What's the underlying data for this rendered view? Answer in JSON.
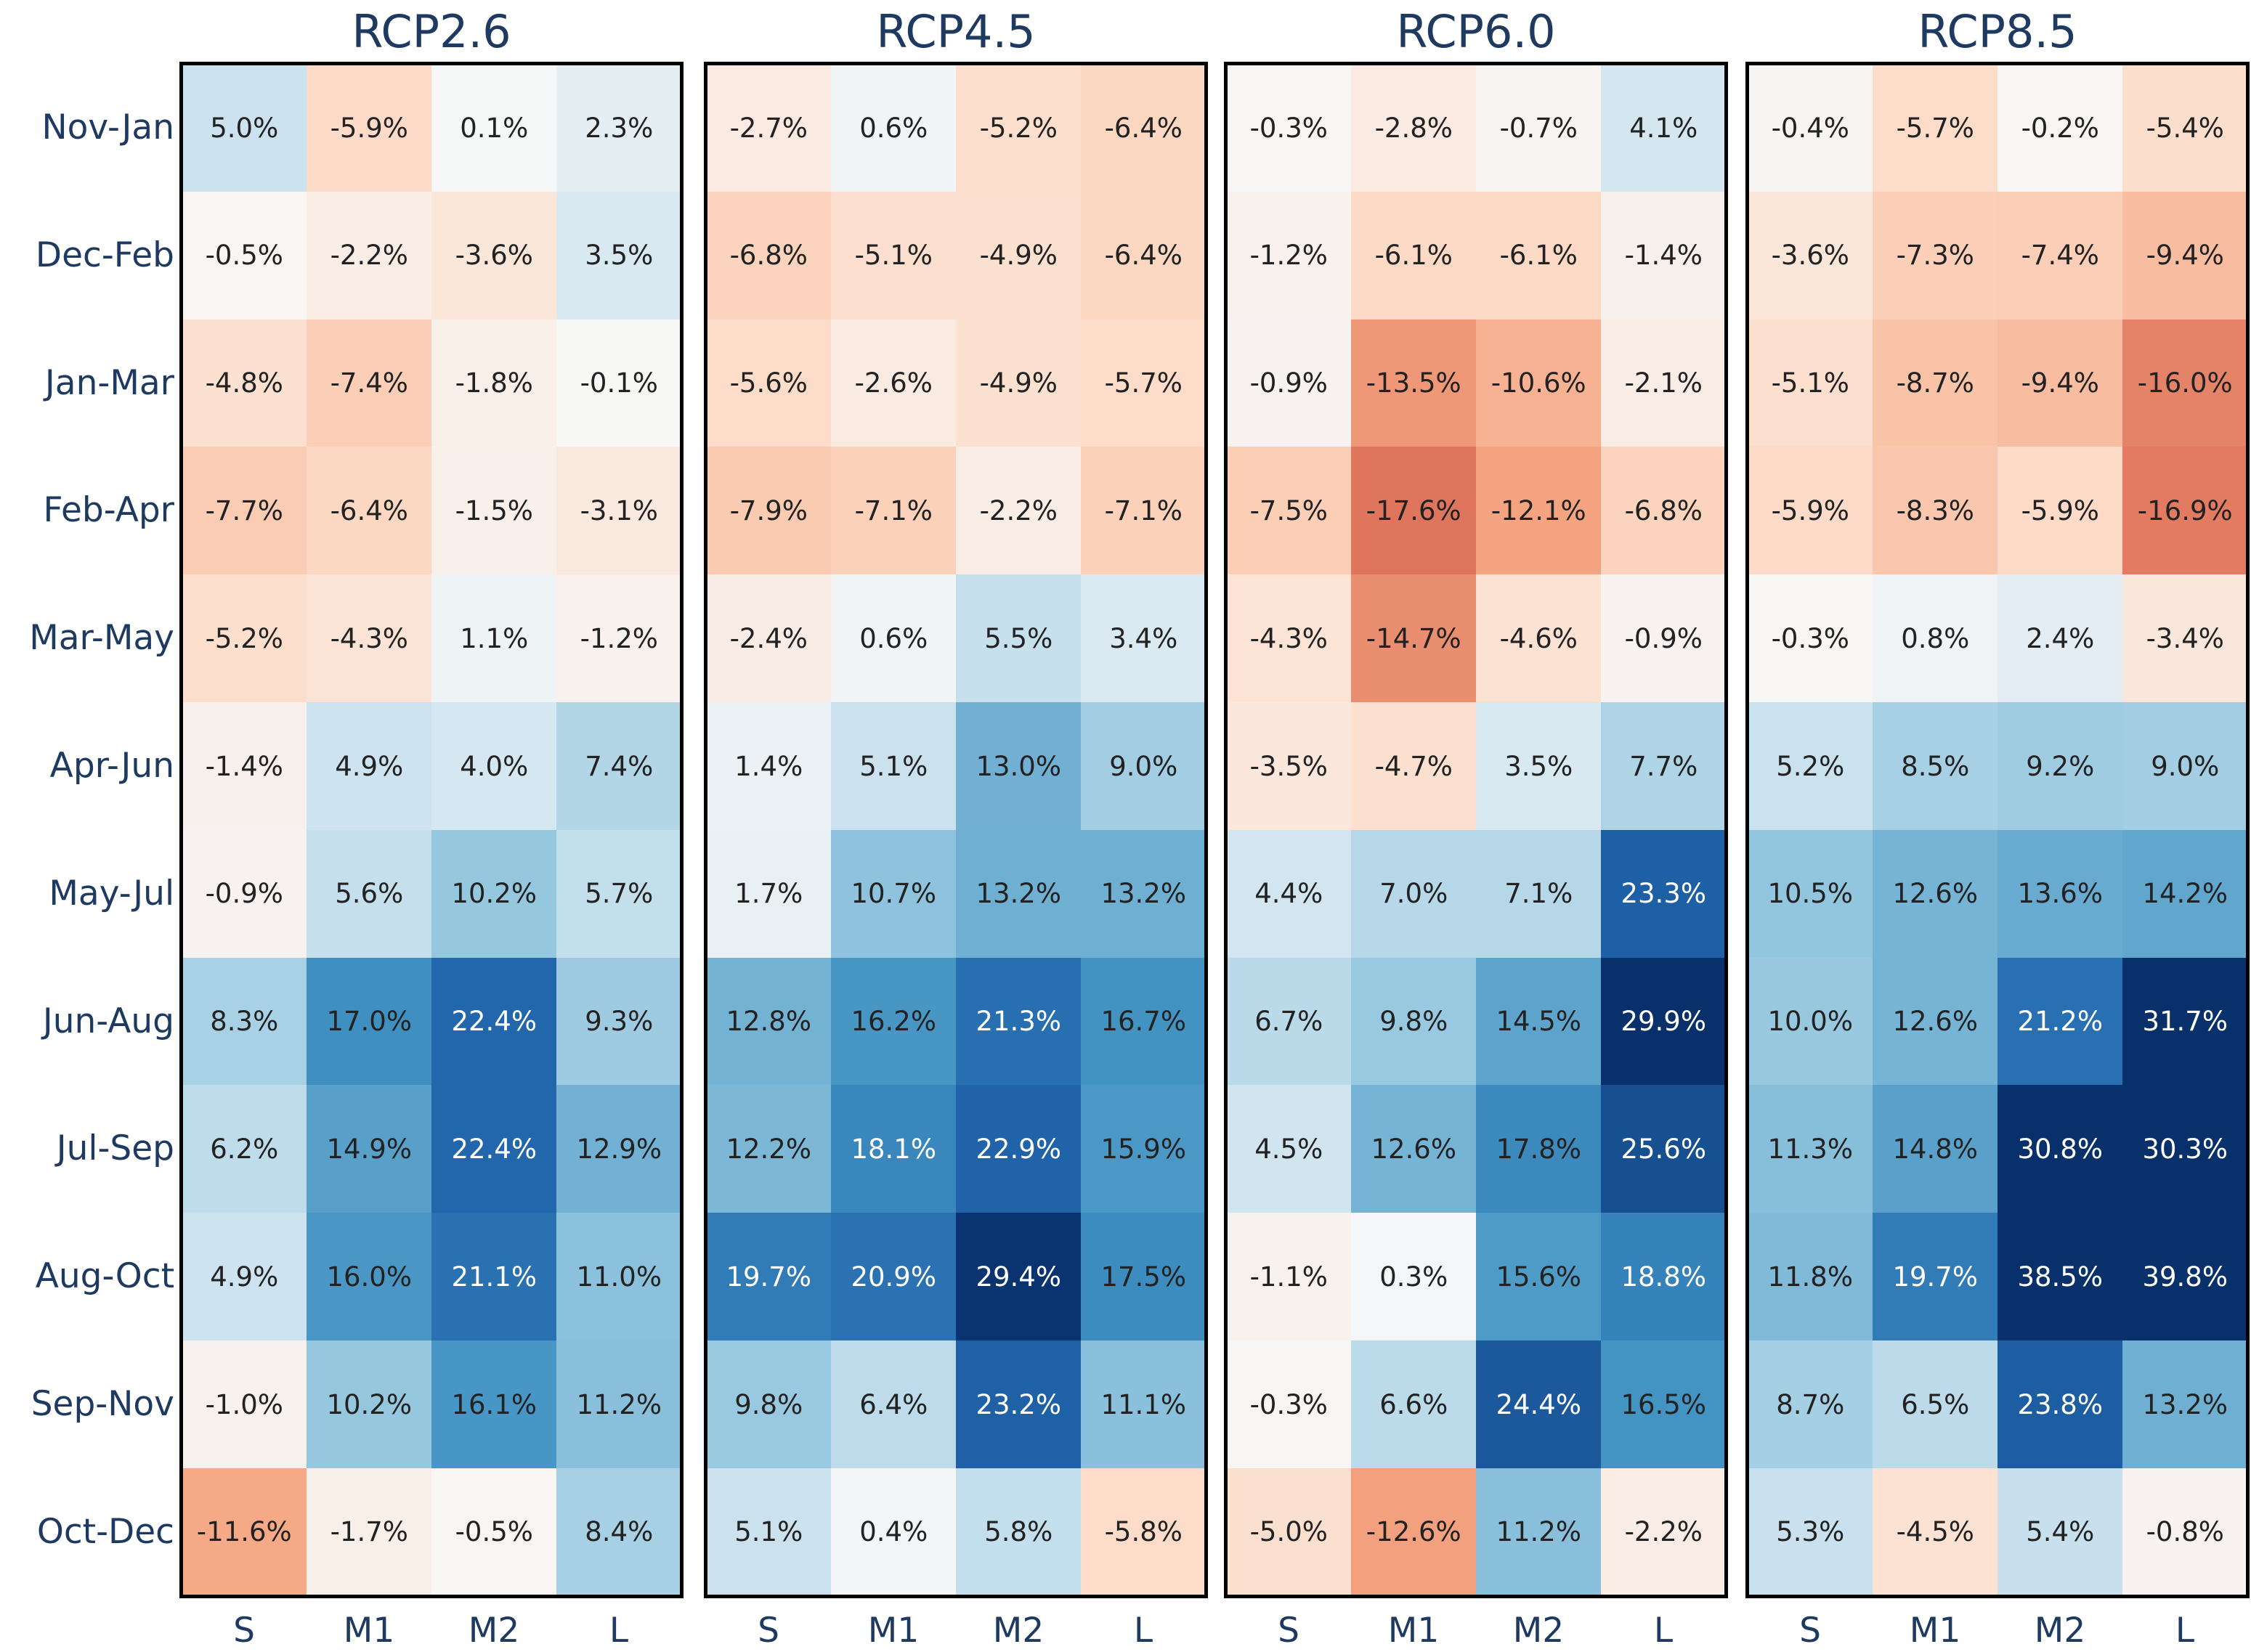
{
  "chart_data": {
    "type": "heatmap",
    "row_labels": [
      "Nov-Jan",
      "Dec-Feb",
      "Jan-Mar",
      "Feb-Apr",
      "Mar-May",
      "Apr-Jun",
      "May-Jul",
      "Jun-Aug",
      "Jul-Sep",
      "Aug-Oct",
      "Sep-Nov",
      "Oct-Dec"
    ],
    "col_labels": [
      "S",
      "M1",
      "M2",
      "L"
    ],
    "panels": [
      {
        "title": "RCP2.6",
        "values": [
          [
            5.0,
            -5.9,
            0.1,
            2.3
          ],
          [
            -0.5,
            -2.2,
            -3.6,
            3.5
          ],
          [
            -4.8,
            -7.4,
            -1.8,
            -0.1
          ],
          [
            -7.7,
            -6.4,
            -1.5,
            -3.1
          ],
          [
            -5.2,
            -4.3,
            1.1,
            -1.2
          ],
          [
            -1.4,
            4.9,
            4.0,
            7.4
          ],
          [
            -0.9,
            5.6,
            10.2,
            5.7
          ],
          [
            8.3,
            17.0,
            22.4,
            9.3
          ],
          [
            6.2,
            14.9,
            22.4,
            12.9
          ],
          [
            4.9,
            16.0,
            21.1,
            11.0
          ],
          [
            -1.0,
            10.2,
            16.1,
            11.2
          ],
          [
            -11.6,
            -1.7,
            -0.5,
            8.4
          ]
        ],
        "labels": [
          [
            "5.0%",
            "-5.9%",
            "0.1%",
            "2.3%"
          ],
          [
            "-0.5%",
            "-2.2%",
            "-3.6%",
            "3.5%"
          ],
          [
            "-4.8%",
            "-7.4%",
            "-1.8%",
            "-0.1%"
          ],
          [
            "-7.7%",
            "-6.4%",
            "-1.5%",
            "-3.1%"
          ],
          [
            "-5.2%",
            "-4.3%",
            "1.1%",
            "-1.2%"
          ],
          [
            "-1.4%",
            "4.9%",
            "4.0%",
            "7.4%"
          ],
          [
            "-0.9%",
            "5.6%",
            "10.2%",
            "5.7%"
          ],
          [
            "8.3%",
            "17.0%",
            "22.4%",
            "9.3%"
          ],
          [
            "6.2%",
            "14.9%",
            "22.4%",
            "12.9%"
          ],
          [
            "4.9%",
            "16.0%",
            "21.1%",
            "11.0%"
          ],
          [
            "-1.0%",
            "10.2%",
            "16.1%",
            "11.2%"
          ],
          [
            "-11.6%",
            "-1.7%",
            "-0.5%",
            "8.4%"
          ]
        ]
      },
      {
        "title": "RCP4.5",
        "values": [
          [
            -2.7,
            0.6,
            -5.2,
            -6.4
          ],
          [
            -6.8,
            -5.1,
            -4.9,
            -6.4
          ],
          [
            -5.6,
            -2.6,
            -4.9,
            -5.7
          ],
          [
            -7.9,
            -7.1,
            -2.2,
            -7.1
          ],
          [
            -2.4,
            0.6,
            5.5,
            3.4
          ],
          [
            1.4,
            5.1,
            13.0,
            9.0
          ],
          [
            1.7,
            10.7,
            13.2,
            13.2
          ],
          [
            12.8,
            16.2,
            21.3,
            16.7
          ],
          [
            12.2,
            18.1,
            22.9,
            15.9
          ],
          [
            19.7,
            20.9,
            29.4,
            17.5
          ],
          [
            9.8,
            6.4,
            23.2,
            11.1
          ],
          [
            5.1,
            0.4,
            5.8,
            -5.8
          ]
        ],
        "labels": [
          [
            "-2.7%",
            "0.6%",
            "-5.2%",
            "-6.4%"
          ],
          [
            "-6.8%",
            "-5.1%",
            "-4.9%",
            "-6.4%"
          ],
          [
            "-5.6%",
            "-2.6%",
            "-4.9%",
            "-5.7%"
          ],
          [
            "-7.9%",
            "-7.1%",
            "-2.2%",
            "-7.1%"
          ],
          [
            "-2.4%",
            "0.6%",
            "5.5%",
            "3.4%"
          ],
          [
            "1.4%",
            "5.1%",
            "13.0%",
            "9.0%"
          ],
          [
            "1.7%",
            "10.7%",
            "13.2%",
            "13.2%"
          ],
          [
            "12.8%",
            "16.2%",
            "21.3%",
            "16.7%"
          ],
          [
            "12.2%",
            "18.1%",
            "22.9%",
            "15.9%"
          ],
          [
            "19.7%",
            "20.9%",
            "29.4%",
            "17.5%"
          ],
          [
            "9.8%",
            "6.4%",
            "23.2%",
            "11.1%"
          ],
          [
            "5.1%",
            "0.4%",
            "5.8%",
            "-5.8%"
          ]
        ]
      },
      {
        "title": "RCP6.0",
        "values": [
          [
            -0.3,
            -2.8,
            -0.7,
            4.1
          ],
          [
            -1.2,
            -6.1,
            -6.1,
            -1.4
          ],
          [
            -0.9,
            -13.5,
            -10.6,
            -2.1
          ],
          [
            -7.5,
            -17.6,
            -12.1,
            -6.8
          ],
          [
            -4.3,
            -14.7,
            -4.6,
            -0.9
          ],
          [
            -3.5,
            -4.7,
            3.5,
            7.7
          ],
          [
            4.4,
            7.0,
            7.1,
            23.3
          ],
          [
            6.7,
            9.8,
            14.5,
            29.9
          ],
          [
            4.5,
            12.6,
            17.8,
            25.6
          ],
          [
            -1.1,
            0.3,
            15.6,
            18.8
          ],
          [
            -0.3,
            6.6,
            24.4,
            16.5
          ],
          [
            -5.0,
            -12.6,
            11.2,
            -2.2
          ]
        ],
        "labels": [
          [
            "-0.3%",
            "-2.8%",
            "-0.7%",
            "4.1%"
          ],
          [
            "-1.2%",
            "-6.1%",
            "-6.1%",
            "-1.4%"
          ],
          [
            "-0.9%",
            "-13.5%",
            "-10.6%",
            "-2.1%"
          ],
          [
            "-7.5%",
            "-17.6%",
            "-12.1%",
            "-6.8%"
          ],
          [
            "-4.3%",
            "-14.7%",
            "-4.6%",
            "-0.9%"
          ],
          [
            "-3.5%",
            "-4.7%",
            "3.5%",
            "7.7%"
          ],
          [
            "4.4%",
            "7.0%",
            "7.1%",
            "23.3%"
          ],
          [
            "6.7%",
            "9.8%",
            "14.5%",
            "29.9%"
          ],
          [
            "4.5%",
            "12.6%",
            "17.8%",
            "25.6%"
          ],
          [
            "-1.1%",
            "0.3%",
            "15.6%",
            "18.8%"
          ],
          [
            "-0.3%",
            "6.6%",
            "24.4%",
            "16.5%"
          ],
          [
            "-5.0%",
            "-12.6%",
            "11.2%",
            "-2.2%"
          ]
        ]
      },
      {
        "title": "RCP8.5",
        "values": [
          [
            -0.4,
            -5.7,
            -0.2,
            -5.4
          ],
          [
            -3.6,
            -7.3,
            -7.4,
            -9.4
          ],
          [
            -5.1,
            -8.7,
            -9.4,
            -16.0
          ],
          [
            -5.9,
            -8.3,
            -5.9,
            -16.9
          ],
          [
            -0.3,
            0.8,
            2.4,
            -3.4
          ],
          [
            5.2,
            8.5,
            9.2,
            9.0
          ],
          [
            10.5,
            12.6,
            13.6,
            14.2
          ],
          [
            10.0,
            12.6,
            21.2,
            31.7
          ],
          [
            11.3,
            14.8,
            30.8,
            30.3
          ],
          [
            11.8,
            19.7,
            38.5,
            39.8
          ],
          [
            8.7,
            6.5,
            23.8,
            13.2
          ],
          [
            5.3,
            -4.5,
            5.4,
            -0.8
          ]
        ],
        "labels": [
          [
            "-0.4%",
            "-5.7%",
            "-0.2%",
            "-5.4%"
          ],
          [
            "-3.6%",
            "-7.3%",
            "-7.4%",
            "-9.4%"
          ],
          [
            "-5.1%",
            "-8.7%",
            "-9.4%",
            "-16.0%"
          ],
          [
            "-5.9%",
            "-8.3%",
            "-5.9%",
            "-16.9%"
          ],
          [
            "-0.3%",
            "0.8%",
            "2.4%",
            "-3.4%"
          ],
          [
            "5.2%",
            "8.5%",
            "9.2%",
            "9.0%"
          ],
          [
            "10.5%",
            "12.6%",
            "13.6%",
            "14.2%"
          ],
          [
            "10.0%",
            "12.6%",
            "21.2%",
            "31.7%"
          ],
          [
            "11.3%",
            "14.8%",
            "30.8%",
            "30.3%"
          ],
          [
            "11.8%",
            "19.7%",
            "38.5%",
            "39.8%"
          ],
          [
            "8.7%",
            "6.5%",
            "23.8%",
            "13.2%"
          ],
          [
            "5.3%",
            "-4.5%",
            "5.4%",
            "-0.8%"
          ]
        ]
      }
    ],
    "color_scale": {
      "negative_color": "#d6604d",
      "positive_color": "#08306b",
      "neutral_color": "#f7f7f7",
      "neg_limit": -20,
      "pos_limit": 30
    }
  }
}
